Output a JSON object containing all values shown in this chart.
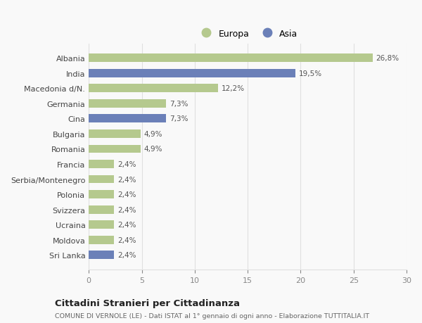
{
  "categories": [
    "Albania",
    "India",
    "Macedonia d/N.",
    "Germania",
    "Cina",
    "Bulgaria",
    "Romania",
    "Francia",
    "Serbia/Montenegro",
    "Polonia",
    "Svizzera",
    "Ucraina",
    "Moldova",
    "Sri Lanka"
  ],
  "values": [
    26.8,
    19.5,
    12.2,
    7.3,
    7.3,
    4.9,
    4.9,
    2.4,
    2.4,
    2.4,
    2.4,
    2.4,
    2.4,
    2.4
  ],
  "labels": [
    "26,8%",
    "19,5%",
    "12,2%",
    "7,3%",
    "7,3%",
    "4,9%",
    "4,9%",
    "2,4%",
    "2,4%",
    "2,4%",
    "2,4%",
    "2,4%",
    "2,4%",
    "2,4%"
  ],
  "colors": [
    "#b5c98e",
    "#6b80b8",
    "#b5c98e",
    "#b5c98e",
    "#6b80b8",
    "#b5c98e",
    "#b5c98e",
    "#b5c98e",
    "#b5c98e",
    "#b5c98e",
    "#b5c98e",
    "#b5c98e",
    "#b5c98e",
    "#6b80b8"
  ],
  "europa_color": "#b5c98e",
  "asia_color": "#6b80b8",
  "xlim": [
    0,
    30
  ],
  "xticks": [
    0,
    5,
    10,
    15,
    20,
    25,
    30
  ],
  "title_main": "Cittadini Stranieri per Cittadinanza",
  "title_sub": "COMUNE DI VERNOLE (LE) - Dati ISTAT al 1° gennaio di ogni anno - Elaborazione TUTTITALIA.IT",
  "background_color": "#f9f9f9",
  "grid_color": "#e0e0e0"
}
